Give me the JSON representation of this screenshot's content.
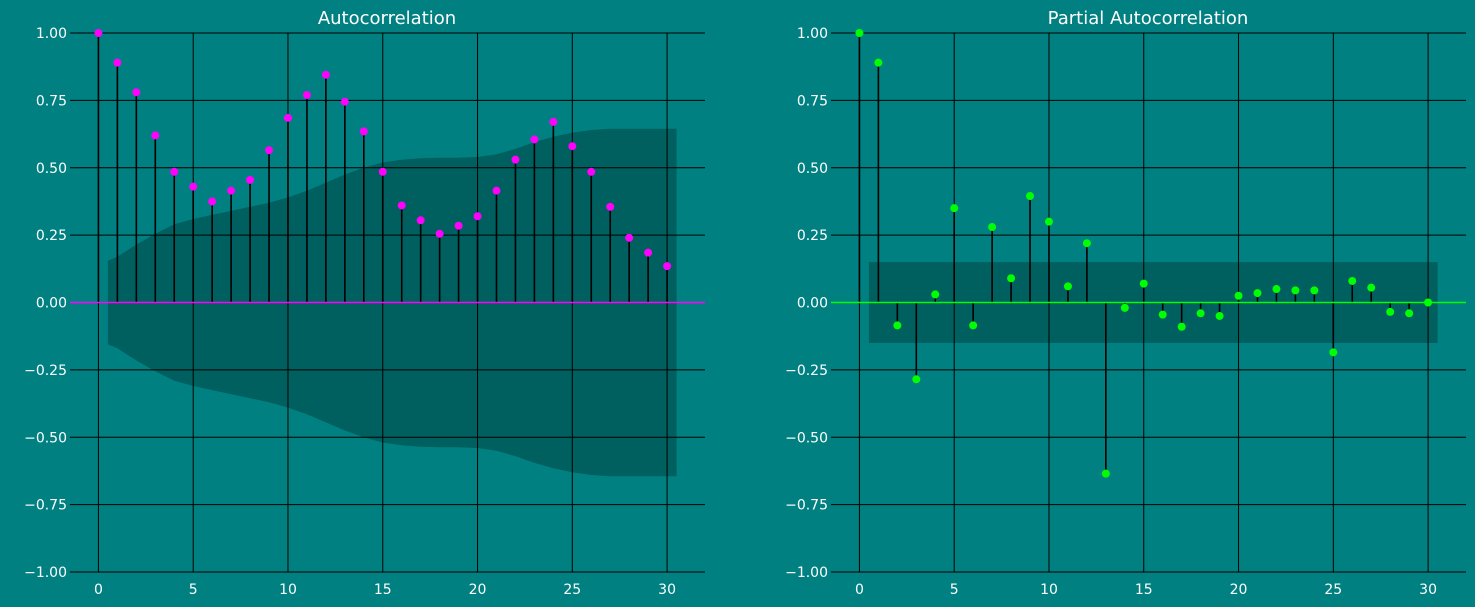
{
  "figure": {
    "background": "#008080",
    "confidence_band_color": "#005f5f",
    "grid_color": "#000000",
    "stem_color": "#000000"
  },
  "chart_data": [
    {
      "type": "stem",
      "title": "Autocorrelation",
      "xlabel": "",
      "ylabel": "",
      "xlim": [
        -1.5,
        32
      ],
      "ylim": [
        -1.0,
        1.0
      ],
      "xticks": [
        0,
        5,
        10,
        15,
        20,
        25,
        30
      ],
      "xtick_labels": [
        "0",
        "5",
        "10",
        "15",
        "20",
        "25",
        "30"
      ],
      "yticks": [
        1.0,
        0.75,
        0.5,
        0.25,
        0.0,
        -0.25,
        -0.5,
        -0.75,
        -1.0
      ],
      "ytick_labels": [
        "1.00",
        "0.75",
        "0.50",
        "0.25",
        "0.00",
        "−0.25",
        "−0.50",
        "−0.75",
        "−1.00"
      ],
      "grid": true,
      "marker_color": "#ff00ff",
      "baseline_color": "#ff00ff",
      "lags": [
        0,
        1,
        2,
        3,
        4,
        5,
        6,
        7,
        8,
        9,
        10,
        11,
        12,
        13,
        14,
        15,
        16,
        17,
        18,
        19,
        20,
        21,
        22,
        23,
        24,
        25,
        26,
        27,
        28,
        29,
        30
      ],
      "values": [
        1.0,
        0.89,
        0.78,
        0.62,
        0.485,
        0.43,
        0.375,
        0.415,
        0.455,
        0.565,
        0.685,
        0.77,
        0.845,
        0.745,
        0.635,
        0.485,
        0.36,
        0.305,
        0.255,
        0.285,
        0.32,
        0.415,
        0.53,
        0.605,
        0.67,
        0.58,
        0.485,
        0.355,
        0.24,
        0.185,
        0.135
      ],
      "confidence_band": {
        "lags": [
          0.5,
          1,
          2,
          3,
          4,
          5,
          6,
          7,
          8,
          9,
          10,
          11,
          12,
          13,
          14,
          15,
          16,
          17,
          18,
          19,
          20,
          21,
          22,
          23,
          24,
          25,
          26,
          27,
          28,
          29,
          30,
          30.5
        ],
        "upper": [
          0.155,
          0.17,
          0.215,
          0.255,
          0.29,
          0.31,
          0.325,
          0.34,
          0.355,
          0.37,
          0.39,
          0.415,
          0.445,
          0.475,
          0.5,
          0.52,
          0.53,
          0.535,
          0.537,
          0.537,
          0.54,
          0.55,
          0.57,
          0.595,
          0.615,
          0.63,
          0.64,
          0.645,
          0.645,
          0.645,
          0.645,
          0.645
        ]
      }
    },
    {
      "type": "stem",
      "title": "Partial Autocorrelation",
      "xlabel": "",
      "ylabel": "",
      "xlim": [
        -1.5,
        32
      ],
      "ylim": [
        -1.0,
        1.0
      ],
      "xticks": [
        0,
        5,
        10,
        15,
        20,
        25,
        30
      ],
      "xtick_labels": [
        "0",
        "5",
        "10",
        "15",
        "20",
        "25",
        "30"
      ],
      "yticks": [
        1.0,
        0.75,
        0.5,
        0.25,
        0.0,
        -0.25,
        -0.5,
        -0.75,
        -1.0
      ],
      "ytick_labels": [
        "1.00",
        "0.75",
        "0.50",
        "0.25",
        "0.00",
        "−0.25",
        "−0.50",
        "−0.75",
        "−1.00"
      ],
      "grid": true,
      "marker_color": "#00ff00",
      "baseline_color": "#00ff00",
      "lags": [
        0,
        1,
        2,
        3,
        4,
        5,
        6,
        7,
        8,
        9,
        10,
        11,
        12,
        13,
        14,
        15,
        16,
        17,
        18,
        19,
        20,
        21,
        22,
        23,
        24,
        25,
        26,
        27,
        28,
        29,
        30
      ],
      "values": [
        1.0,
        0.89,
        -0.085,
        -0.285,
        0.03,
        0.35,
        -0.085,
        0.28,
        0.09,
        0.395,
        0.3,
        0.06,
        0.22,
        -0.635,
        -0.02,
        0.07,
        -0.045,
        -0.09,
        -0.04,
        -0.05,
        0.025,
        0.035,
        0.05,
        0.045,
        0.045,
        -0.185,
        0.08,
        0.055,
        -0.035,
        -0.04,
        0.0
      ],
      "confidence_band": {
        "lags": [
          0.5,
          30.5
        ],
        "upper": [
          0.15,
          0.15
        ]
      }
    }
  ]
}
